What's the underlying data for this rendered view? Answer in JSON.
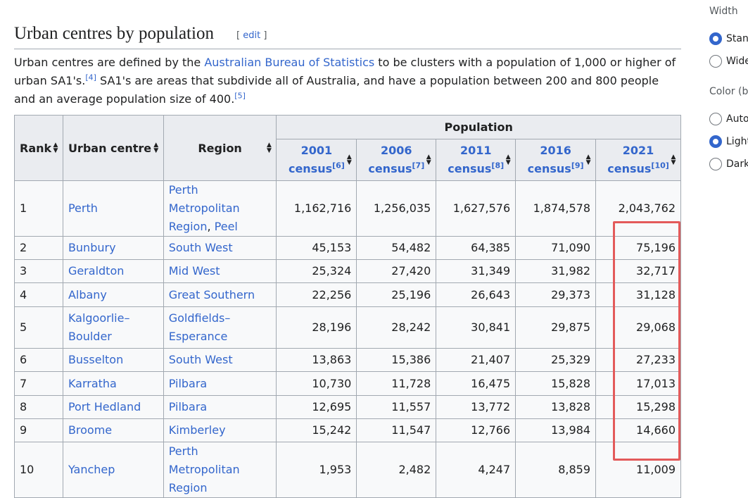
{
  "section": {
    "title": "Urban centres by population",
    "edit_open": "[ ",
    "edit_label": "edit",
    "edit_close": " ]"
  },
  "intro": {
    "part1": "Urban centres are defined by the ",
    "link": "Australian Bureau of Statistics",
    "part2": " to be clusters with a population of 1,000 or higher of urban SA1's.",
    "ref1": "[4]",
    "part3": " SA1's are areas that subdivide all of Australia, and have a population between 200 and 800 people and an average population size of 400.",
    "ref2": "[5]"
  },
  "table": {
    "headers": {
      "rank": "Rank",
      "urban_centre": "Urban centre",
      "region": "Region",
      "population": "Population"
    },
    "census": [
      {
        "year": "2001",
        "label": "census",
        "ref": "[6]"
      },
      {
        "year": "2006",
        "label": "census",
        "ref": "[7]"
      },
      {
        "year": "2011",
        "label": "census",
        "ref": "[8]"
      },
      {
        "year": "2016",
        "label": "census",
        "ref": "[9]"
      },
      {
        "year": "2021",
        "label": "census",
        "ref": "[10]"
      }
    ],
    "rows": [
      {
        "rank": "1",
        "centre": "Perth",
        "region_a": "Perth Metropolitan",
        "region_b": "Region",
        "region_sep": ", ",
        "region_c": "Peel",
        "p2001": "1,162,716",
        "p2006": "1,256,035",
        "p2011": "1,627,576",
        "p2016": "1,874,578",
        "p2021": "2,043,762"
      },
      {
        "rank": "2",
        "centre": "Bunbury",
        "region": "South West",
        "p2001": "45,153",
        "p2006": "54,482",
        "p2011": "64,385",
        "p2016": "71,090",
        "p2021": "75,196"
      },
      {
        "rank": "3",
        "centre": "Geraldton",
        "region": "Mid West",
        "p2001": "25,324",
        "p2006": "27,420",
        "p2011": "31,349",
        "p2016": "31,982",
        "p2021": "32,717"
      },
      {
        "rank": "4",
        "centre": "Albany",
        "region": "Great Southern",
        "p2001": "22,256",
        "p2006": "25,196",
        "p2011": "26,643",
        "p2016": "29,373",
        "p2021": "31,128"
      },
      {
        "rank": "5",
        "centre_a": "Kalgoorlie–",
        "centre_b": "Boulder",
        "region_a": "Goldfields–",
        "region_b": "Esperance",
        "p2001": "28,196",
        "p2006": "28,242",
        "p2011": "30,841",
        "p2016": "29,875",
        "p2021": "29,068"
      },
      {
        "rank": "6",
        "centre": "Busselton",
        "region": "South West",
        "p2001": "13,863",
        "p2006": "15,386",
        "p2011": "21,407",
        "p2016": "25,329",
        "p2021": "27,233"
      },
      {
        "rank": "7",
        "centre": "Karratha",
        "region": "Pilbara",
        "p2001": "10,730",
        "p2006": "11,728",
        "p2011": "16,475",
        "p2016": "15,828",
        "p2021": "17,013"
      },
      {
        "rank": "8",
        "centre": "Port Hedland",
        "region": "Pilbara",
        "p2001": "12,695",
        "p2006": "11,557",
        "p2011": "13,772",
        "p2016": "13,828",
        "p2021": "15,298"
      },
      {
        "rank": "9",
        "centre": "Broome",
        "region": "Kimberley",
        "p2001": "15,242",
        "p2006": "11,547",
        "p2011": "12,766",
        "p2016": "13,984",
        "p2021": "14,660"
      },
      {
        "rank": "10",
        "centre": "Yanchep",
        "region_a": "Perth Metropolitan",
        "region_b": "Region",
        "p2001": "1,953",
        "p2006": "2,482",
        "p2011": "4,247",
        "p2016": "8,859",
        "p2021": "11,009"
      }
    ]
  },
  "appearance": {
    "width_heading": "Width",
    "width_options": [
      "Standard",
      "Wide"
    ],
    "color_heading": "Color (beta)",
    "color_options": [
      "Automatic",
      "Light",
      "Dark"
    ]
  },
  "colors": {
    "link": "#3366cc",
    "highlight_box": "#e35a5a",
    "header_bg": "#eaecf0"
  }
}
